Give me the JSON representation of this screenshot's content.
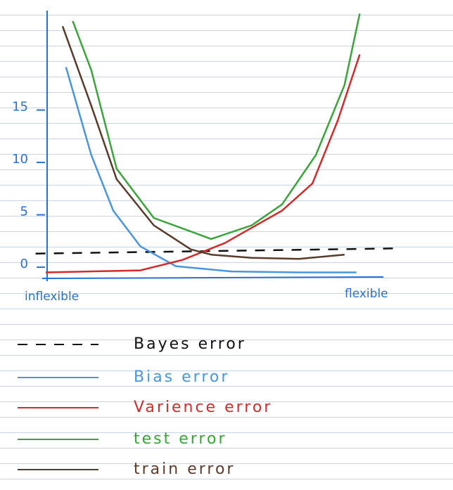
{
  "chart_data": {
    "type": "line",
    "x_end_labels": [
      "inflexible",
      "flexible"
    ],
    "xlim": [
      -0.5,
      10.5
    ],
    "ylim": [
      -1,
      25
    ],
    "yticks": [
      0,
      5,
      10,
      15
    ],
    "axis_color": "#2a6fd6",
    "series": [
      {
        "name": "Bayes error",
        "color": "#111111",
        "dashed": true,
        "x": [
          -0.3,
          10.4
        ],
        "values": [
          1.3,
          1.8
        ]
      },
      {
        "name": "Bias error",
        "color": "#4a95dc",
        "dashed": false,
        "x": [
          0.6,
          1.35,
          2.0,
          2.8,
          3.85,
          5.5,
          7.5,
          9.2
        ],
        "values": [
          19.1,
          10.7,
          5.4,
          2.0,
          0.1,
          -0.4,
          -0.5,
          -0.5
        ]
      },
      {
        "name": "Varience error",
        "color": "#d42a2a",
        "dashed": false,
        "x": [
          0.0,
          2.8,
          4.05,
          5.3,
          7.0,
          7.9,
          8.65,
          9.3
        ],
        "values": [
          -0.5,
          -0.3,
          0.7,
          2.3,
          5.4,
          8.0,
          14.0,
          20.3
        ]
      },
      {
        "name": "test error",
        "color": "#3aa43a",
        "dashed": false,
        "x": [
          0.8,
          1.35,
          2.1,
          3.2,
          4.9,
          6.1,
          7.0,
          8.0,
          8.85,
          9.3
        ],
        "values": [
          23.5,
          18.8,
          9.4,
          4.7,
          2.7,
          4.0,
          6.0,
          10.7,
          17.4,
          24.2
        ]
      },
      {
        "name": "train error",
        "color": "#5a3a2a",
        "dashed": false,
        "x": [
          0.5,
          1.35,
          2.1,
          3.2,
          4.3,
          4.9,
          6.1,
          7.5,
          8.85
        ],
        "values": [
          23.0,
          15.4,
          8.4,
          4.0,
          1.7,
          1.2,
          0.9,
          0.8,
          1.2
        ]
      }
    ]
  }
}
